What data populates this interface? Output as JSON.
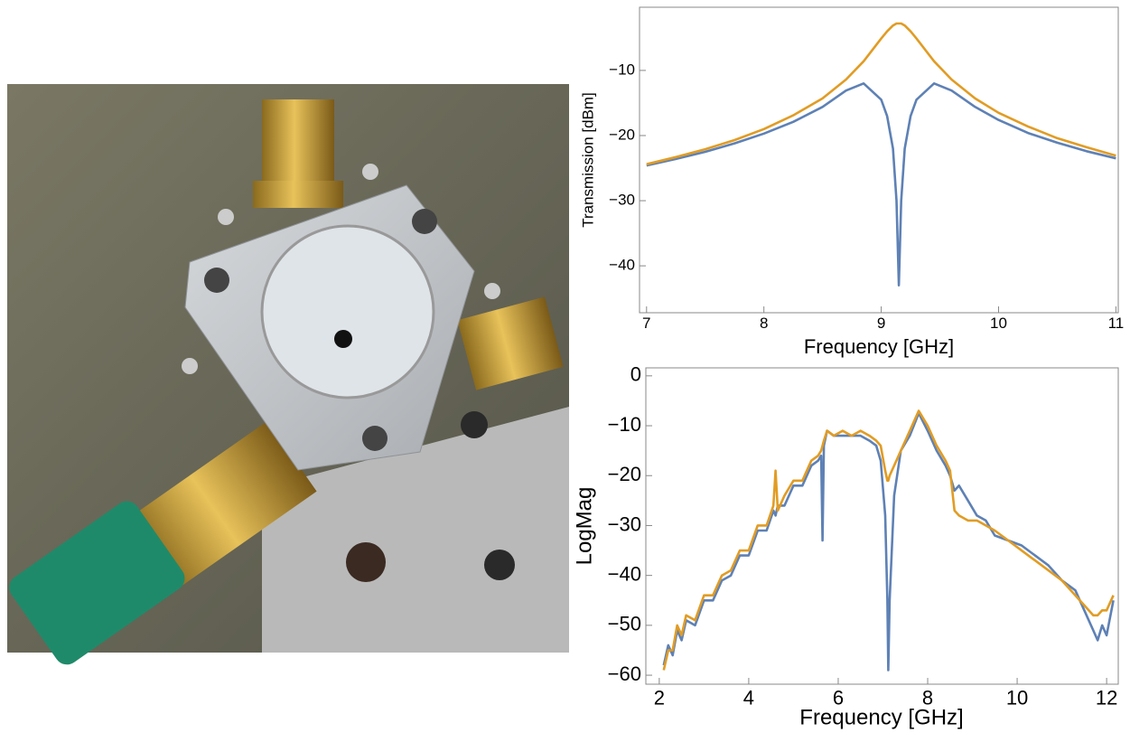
{
  "chart_data": [
    {
      "type": "line",
      "x_label": "Frequency [GHz]",
      "y_label": "Transmission [dBm]",
      "x": [
        7,
        7.25,
        7.5,
        7.75,
        8,
        8.25,
        8.5,
        8.7,
        8.85,
        9.0,
        9.05,
        9.1,
        9.13,
        9.15,
        9.17,
        9.2,
        9.25,
        9.3,
        9.45,
        9.6,
        9.8,
        10,
        10.25,
        10.5,
        10.75,
        11
      ],
      "series": [
        {
          "color": "#5e81b5",
          "values": [
            -24.6,
            -23.6,
            -22.5,
            -21.2,
            -19.7,
            -17.9,
            -15.6,
            -13.1,
            -12.0,
            -14.5,
            -17,
            -22,
            -30,
            -43,
            -30,
            -22,
            -17,
            -14.5,
            -12.0,
            -13.1,
            -15.6,
            -17.6,
            -19.6,
            -21.1,
            -22.4,
            -23.5
          ]
        },
        {
          "color": "#e19c24",
          "values": [
            -24.4,
            -23.3,
            -22.1,
            -20.7,
            -19.0,
            -16.9,
            -14.3,
            -11.4,
            -8.6,
            -5.1,
            -4.0,
            -3.1,
            -2.8,
            -2.8,
            -2.8,
            -3.1,
            -4.0,
            -5.1,
            -8.6,
            -11.4,
            -14.3,
            -16.5,
            -18.6,
            -20.4,
            -21.8,
            -23.1
          ]
        }
      ],
      "xlim": [
        6.94,
        11.02
      ],
      "ylim": [
        -47.2,
        -0.3
      ],
      "xticks": [
        7,
        8,
        9,
        10,
        11
      ],
      "yticks": [
        {
          "value": -10,
          "label": "−10"
        },
        {
          "value": -20,
          "label": "−20"
        },
        {
          "value": -30,
          "label": "−30"
        },
        {
          "value": -40,
          "label": "−40"
        }
      ]
    },
    {
      "type": "line",
      "x_label": "Frequency [GHz]",
      "y_label": "LogMag",
      "x": [
        2.1,
        2.2,
        2.3,
        2.4,
        2.5,
        2.6,
        2.8,
        3.0,
        3.2,
        3.4,
        3.6,
        3.8,
        4.0,
        4.2,
        4.4,
        4.55,
        4.6,
        4.65,
        4.8,
        5.0,
        5.2,
        5.4,
        5.55,
        5.62,
        5.65,
        5.68,
        5.75,
        5.9,
        6.1,
        6.3,
        6.5,
        6.7,
        6.85,
        6.95,
        7.05,
        7.1,
        7.12,
        7.15,
        7.25,
        7.4,
        7.6,
        7.8,
        8.0,
        8.2,
        8.4,
        8.5,
        8.6,
        8.7,
        8.9,
        9.1,
        9.3,
        9.5,
        9.8,
        10.1,
        10.4,
        10.7,
        11.0,
        11.3,
        11.5,
        11.7,
        11.8,
        11.9,
        12.0,
        12.15
      ],
      "series": [
        {
          "color": "#5e81b5",
          "values": [
            -58,
            -54,
            -56,
            -51,
            -53,
            -49,
            -50,
            -45,
            -45,
            -41,
            -40,
            -36,
            -36,
            -31,
            -31,
            -27,
            -28,
            -26,
            -26,
            -22,
            -22,
            -18,
            -17,
            -16,
            -33,
            -14,
            -11,
            -12,
            -12,
            -12,
            -12,
            -13,
            -14,
            -17,
            -28,
            -45,
            -59,
            -45,
            -24,
            -15,
            -12,
            -7.5,
            -11,
            -15,
            -18,
            -20,
            -23,
            -22,
            -25,
            -28,
            -29,
            -32,
            -33,
            -34,
            -36,
            -38,
            -41,
            -43,
            -47,
            -51,
            -53,
            -50,
            -52,
            -45
          ]
        },
        {
          "color": "#e19c24",
          "values": [
            -59,
            -55,
            -55,
            -50,
            -52,
            -48,
            -49,
            -44,
            -44,
            -40,
            -39,
            -35,
            -35,
            -30,
            -30,
            -26,
            -19,
            -27,
            -24,
            -21,
            -21,
            -17,
            -16,
            -15,
            -14,
            -13,
            -11,
            -12,
            -11,
            -12,
            -11,
            -12,
            -13,
            -14,
            -19,
            -21,
            -21,
            -20,
            -18,
            -15,
            -11,
            -7,
            -10,
            -14,
            -17,
            -19,
            -27,
            -28,
            -29,
            -29,
            -30,
            -31,
            -33,
            -35,
            -37,
            -39,
            -41,
            -44,
            -46,
            -48,
            -48,
            -47,
            -47,
            -44
          ]
        }
      ],
      "xlim": [
        1.7,
        12.26
      ],
      "ylim": [
        -61.8,
        1.6
      ],
      "xticks": [
        2,
        4,
        6,
        8,
        10,
        12
      ],
      "yticks": [
        0,
        {
          "value": -10,
          "label": "−10"
        },
        {
          "value": -20,
          "label": "−20"
        },
        {
          "value": -30,
          "label": "−30"
        },
        {
          "value": -40,
          "label": "−40"
        },
        {
          "value": -50,
          "label": "−50"
        },
        {
          "value": -60,
          "label": "−60"
        }
      ]
    }
  ]
}
